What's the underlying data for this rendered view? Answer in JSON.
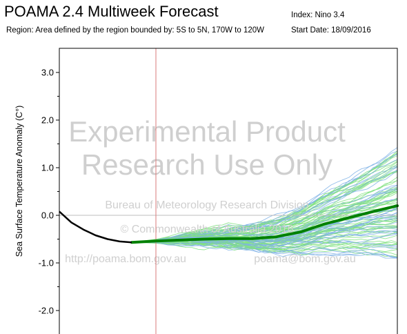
{
  "header": {
    "title": "POAMA 2.4 Multiweek Forecast",
    "region": "Region: Area defined by the region bounded by: 5S to 5N, 170W to 120W",
    "index": "Index: Nino 3.4",
    "start_date": "Start Date: 18/09/2016"
  },
  "watermark": {
    "line1": "Experimental Product",
    "line2": "Research Use Only",
    "line3": "Bureau of Meteorology Research Division",
    "line4": "© Commonwealth of Australia 2016",
    "line5": "http://poama.bom.gov.au",
    "line6": "poama@bom.gov.au"
  },
  "colors": {
    "observed": "#000000",
    "ensemble_mean": "#008000",
    "member_a": "#7fb2e6",
    "member_b": "#7fe07f",
    "forecast_start_line": "#d97a7a",
    "watermark": "#cfcfcf"
  },
  "chart_data": {
    "type": "line",
    "ylabel": "Sea Surface Temperature Anomaly (C°)",
    "ylim": [
      -2.5,
      3.5
    ],
    "xlim": [
      0,
      28
    ],
    "yticks": [
      3.0,
      2.0,
      1.0,
      0.0,
      -1.0,
      -2.0
    ],
    "ytick_labels": [
      "3.0",
      "2.0",
      "1.0",
      "0.0",
      "-1.0",
      "-2.0"
    ],
    "forecast_start_x": 8,
    "grid": false,
    "observed": {
      "x": [
        0,
        1,
        2,
        3,
        4,
        5,
        6
      ],
      "y": [
        0.08,
        -0.15,
        -0.3,
        -0.42,
        -0.5,
        -0.55,
        -0.57
      ]
    },
    "ensemble_mean": {
      "x": [
        6,
        8,
        10,
        12,
        14,
        16,
        18,
        20,
        22,
        24,
        26,
        28
      ],
      "y": [
        -0.57,
        -0.54,
        -0.52,
        -0.5,
        -0.49,
        -0.49,
        -0.45,
        -0.35,
        -0.18,
        -0.05,
        0.08,
        0.2
      ]
    },
    "ensemble_members": {
      "count": 99,
      "start_x": 6,
      "end_x": 28,
      "start_y": -0.57,
      "end_y_range": [
        -0.9,
        1.45
      ]
    }
  }
}
